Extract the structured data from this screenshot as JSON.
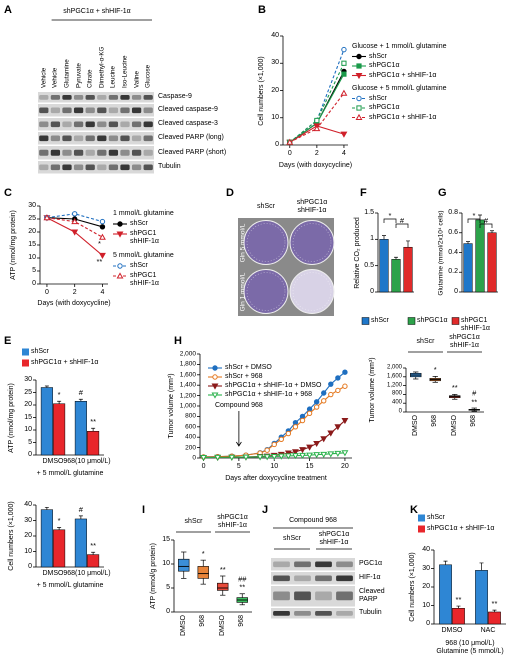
{
  "chart_data": [
    {
      "panel": "A",
      "type": "blot",
      "header": "shPGC1α + shHIF-1α",
      "lanes": [
        "Vehicle",
        "Vehicle",
        "Glutamine",
        "Pyruvate",
        "Citrate",
        "Dimethyl-α-KG",
        "Leucine",
        "Iso-Leucine",
        "Valine",
        "Glucose"
      ],
      "rows": [
        "Caspase-9",
        "Cleaved caspase-9",
        "Cleaved caspase-3",
        "Cleaved PARP (long)",
        "Cleaved PARP (short)",
        "Tubulin"
      ]
    },
    {
      "panel": "B",
      "type": "line",
      "ylabel": "Cell numbers (×1,000)",
      "xlabel": "Days (with doxycycline)",
      "x": [
        0,
        2,
        4
      ],
      "xlim": [
        -0.5,
        4.3
      ],
      "xticks": [
        0,
        2,
        4
      ],
      "ylim": [
        0,
        40
      ],
      "yticks": [
        0,
        10,
        20,
        30,
        40
      ],
      "legend_titles": [
        "Glucose + 1 mmol/L glutamine",
        "Glucose + 5 mmol/L glutamine"
      ],
      "series": [
        {
          "name": "shScr",
          "color": "#000000",
          "marker": "circle",
          "filled": true,
          "dash": false,
          "values": [
            1,
            8,
            27
          ]
        },
        {
          "name": "shPGC1α",
          "color": "#1a9a4a",
          "marker": "square",
          "filled": true,
          "dash": false,
          "values": [
            1,
            8,
            26
          ]
        },
        {
          "name": "shPGC1α + shHIF-1α",
          "color": "#d0202a",
          "marker": "triangle-down",
          "filled": true,
          "dash": false,
          "values": [
            1,
            7,
            4
          ]
        },
        {
          "name": "shScr",
          "color": "#1f6fc0",
          "marker": "circle",
          "filled": false,
          "dash": true,
          "values": [
            1,
            9,
            35
          ]
        },
        {
          "name": "shPGC1α",
          "color": "#1a9a4a",
          "marker": "square",
          "filled": false,
          "dash": true,
          "values": [
            1,
            9,
            30
          ]
        },
        {
          "name": "shPGC1α + shHIF-1α",
          "color": "#d0202a",
          "marker": "triangle-up",
          "filled": false,
          "dash": true,
          "values": [
            1,
            6,
            19
          ]
        }
      ]
    },
    {
      "panel": "C",
      "type": "line",
      "ylabel": "ATP (nmol/mg protein)",
      "xlabel": "Days (with doxycycline)",
      "x": [
        0,
        2,
        4
      ],
      "xlim": [
        -0.5,
        4.4
      ],
      "xticks": [
        0,
        2,
        4
      ],
      "ylim": [
        0,
        30
      ],
      "yticks": [
        0,
        5,
        10,
        15,
        20,
        25,
        30
      ],
      "legend_titles": [
        "1 mmol/L glutamine",
        "5 mmol/L glutamine"
      ],
      "series": [
        {
          "name": "shScr",
          "color": "#000000",
          "marker": "circle",
          "filled": true,
          "dash": false,
          "values": [
            25.5,
            25,
            22
          ]
        },
        {
          "name": "shPGC1\nshHIF-1α",
          "color": "#d0202a",
          "marker": "triangle-down",
          "filled": true,
          "dash": false,
          "values": [
            25.5,
            20,
            11
          ],
          "significance": [
            null,
            null,
            "**"
          ]
        },
        {
          "name": "shScr",
          "color": "#1f6fc0",
          "marker": "circle",
          "filled": false,
          "dash": true,
          "values": [
            25.5,
            27,
            24
          ]
        },
        {
          "name": "shPGC1\nshHIF-1α",
          "color": "#d0202a",
          "marker": "triangle-up",
          "filled": false,
          "dash": true,
          "values": [
            25.5,
            24,
            18
          ],
          "significance": [
            null,
            null,
            "*"
          ]
        }
      ]
    },
    {
      "panel": "D",
      "type": "image",
      "columns": [
        "shScr",
        "shPGC1α\nshHIF-1α"
      ],
      "rows": [
        "Gln 5 mmol/L",
        "Gln 1 mmol/L"
      ]
    },
    {
      "panel": "F",
      "type": "bar",
      "ylabel": "Relative CO₂ produced",
      "ylim": [
        0,
        1.5
      ],
      "yticks": [
        0,
        0.5,
        1,
        1.5
      ],
      "categories": [
        "shScr",
        "shPGC1α",
        "shPGC1\nshHIF-1α"
      ],
      "colors": [
        "#1f77c9",
        "#2ca24a",
        "#e02a2a"
      ],
      "values": [
        1.0,
        0.62,
        0.85
      ],
      "errors": [
        0.07,
        0.04,
        0.12
      ],
      "comparisons": [
        "*",
        "#"
      ]
    },
    {
      "panel": "G",
      "type": "bar",
      "ylabel": "Glutamine (mmol/2x10⁴ cells)",
      "ylim": [
        0,
        0.8
      ],
      "yticks": [
        0,
        0.2,
        0.4,
        0.6,
        0.8
      ],
      "colors": [
        "#1f77c9",
        "#2ca24a",
        "#e02a2a"
      ],
      "values": [
        0.49,
        0.73,
        0.6
      ],
      "errors": [
        0.02,
        0.05,
        0.02
      ],
      "comparisons": [
        "*",
        "#"
      ]
    },
    {
      "panel": "E",
      "type": "grouped_bar",
      "ylabel": "ATP (nmol/mg protein)",
      "ylim": [
        0,
        30
      ],
      "yticks": [
        0,
        5,
        10,
        15,
        20,
        25,
        30
      ],
      "categories": [
        "DMSO",
        "968(10 μmol/L)"
      ],
      "xlabel": "+ 5 mmol/L glutamine",
      "series": [
        {
          "name": "shScr",
          "color": "#2e86d4",
          "values": [
            27,
            21.5
          ],
          "errors": [
            0.6,
            0.8
          ],
          "significance": [
            null,
            "#"
          ]
        },
        {
          "name": "shPGC1α + shHIF-1α",
          "color": "#e8262b",
          "values": [
            20.5,
            9.5
          ],
          "errors": [
            1,
            1.2
          ],
          "significance": [
            "*",
            "**"
          ]
        }
      ]
    },
    {
      "type": "grouped_bar",
      "ylabel": "Cell numbers (×1,000)",
      "ylim": [
        0,
        40
      ],
      "yticks": [
        0,
        10,
        20,
        30,
        40
      ],
      "categories": [
        "DMSO",
        "968(10 μmol/L)"
      ],
      "xlabel": "+ 5 mmol/L glutamine",
      "series": [
        {
          "color": "#2e86d4",
          "values": [
            37,
            31
          ],
          "errors": [
            1.5,
            2
          ],
          "significance": [
            null,
            "#"
          ]
        },
        {
          "color": "#e8262b",
          "values": [
            24,
            8
          ],
          "errors": [
            1.5,
            1.5
          ],
          "significance": [
            "*",
            "**"
          ]
        }
      ]
    },
    {
      "panel": "H",
      "type": "line",
      "ylabel": "Tumor volume (mm³)",
      "xlabel": "Days after doxycycline treatment",
      "x": [
        0,
        2,
        4,
        6,
        8,
        9,
        10,
        11,
        12,
        13,
        14,
        15,
        16,
        17,
        18,
        19,
        20
      ],
      "xlim": [
        -0.5,
        21
      ],
      "xticks": [
        0,
        5,
        10,
        15,
        20
      ],
      "ylim": [
        0,
        2000
      ],
      "yticks": [
        0,
        200,
        400,
        600,
        800,
        {
          "value": 1000,
          "label": "1,000"
        },
        {
          "value": 1200,
          "label": "1,200"
        },
        {
          "value": 1400,
          "label": "1,400"
        },
        {
          "value": 1600,
          "label": "1,600"
        },
        {
          "value": 1800,
          "label": "1,800"
        },
        {
          "value": 2000,
          "label": "2,000"
        }
      ],
      "arrow_label": {
        "text": "Compound 968",
        "x": 5
      },
      "series": [
        {
          "name": "shScr + DMSO",
          "color": "#1f6fc0",
          "marker": "circle",
          "filled": true,
          "dash": false,
          "values": [
            20,
            25,
            35,
            55,
            100,
            160,
            280,
            400,
            520,
            680,
            800,
            940,
            1080,
            1250,
            1420,
            1540,
            1650
          ]
        },
        {
          "name": "shScr + 968",
          "color": "#e57a22",
          "marker": "circle",
          "filled": false,
          "dash": false,
          "values": [
            20,
            25,
            35,
            55,
            95,
            150,
            260,
            360,
            470,
            600,
            720,
            860,
            980,
            1100,
            1220,
            1300,
            1380
          ]
        },
        {
          "name": "shPGC1α + shHIF-1α + DMSO",
          "color": "#8b1a1a",
          "marker": "triangle-down",
          "filled": true,
          "dash": false,
          "values": [
            10,
            12,
            15,
            20,
            28,
            35,
            50,
            70,
            95,
            120,
            160,
            210,
            280,
            370,
            480,
            600,
            720
          ]
        },
        {
          "name": "shPGC1α + shHIF-1α + 968",
          "color": "#2bb24c",
          "marker": "triangle-down",
          "filled": false,
          "dash": false,
          "values": [
            10,
            12,
            15,
            18,
            22,
            25,
            30,
            35,
            40,
            45,
            50,
            55,
            65,
            70,
            80,
            90,
            100
          ]
        }
      ]
    },
    {
      "type": "box",
      "ylabel": "Tumor volume (mm³)",
      "ylim": [
        0,
        2000
      ],
      "yticks": [
        0,
        400,
        800,
        {
          "value": 1200,
          "label": "1,200"
        },
        {
          "value": 1600,
          "label": "1,600"
        },
        {
          "value": 2000,
          "label": "2,000"
        }
      ],
      "group_labels": [
        "shScr",
        "shPGC1α\nshHIF-1α"
      ],
      "categories": [
        "DMSO",
        "968",
        "DMSO",
        "968"
      ],
      "colors": [
        "#3b8fd9",
        "#e8843a",
        "#e84a3a",
        "#3cc060"
      ],
      "boxes": [
        [
          1500,
          1600,
          1680,
          1760,
          1820
        ],
        [
          1350,
          1420,
          1480,
          1530,
          1620
        ],
        [
          580,
          650,
          700,
          740,
          800
        ],
        [
          40,
          80,
          100,
          120,
          180
        ]
      ],
      "significance": [
        null,
        "*",
        "**",
        "#\n**"
      ]
    },
    {
      "panel": "I",
      "type": "box",
      "ylabel": "ATP (mmol/g protein)",
      "ylim": [
        0,
        15
      ],
      "yticks": [
        0,
        5,
        10,
        15
      ],
      "group_labels": [
        "shScr",
        "shPGC1α\nshHIF-1α"
      ],
      "categories": [
        "DMSO",
        "968",
        "DMSO",
        "968"
      ],
      "colors": [
        "#3b8fd9",
        "#e8843a",
        "#e84a3a",
        "#3cc060"
      ],
      "boxes": [
        [
          7,
          8.5,
          9.5,
          11,
          12.5
        ],
        [
          5.8,
          7,
          8,
          9.5,
          10.8
        ],
        [
          3.5,
          4.5,
          5,
          6,
          7.5
        ],
        [
          1.5,
          2,
          2.5,
          3,
          3.8
        ]
      ],
      "significance": [
        null,
        "*",
        "**",
        "##\n**"
      ]
    },
    {
      "panel": "J",
      "type": "blot",
      "header": "Compound 968",
      "columns": [
        "shScr",
        "shPGC1α\nshHIF-1α"
      ],
      "rows": [
        "PGC1α",
        "HIF-1α",
        "Cleaved\nPARP",
        "Tubulin"
      ]
    },
    {
      "panel": "K",
      "type": "grouped_bar",
      "ylabel": "Cell numbers (×1,000)",
      "ylim": [
        0,
        40
      ],
      "yticks": [
        0,
        10,
        20,
        30,
        40
      ],
      "categories": [
        "DMSO",
        "NAC"
      ],
      "xlabel": "968 (10 μmol/L)\nGlutamine (5 mmol/L)",
      "series": [
        {
          "name": "shScr",
          "color": "#2e86d4",
          "values": [
            32,
            29
          ],
          "errors": [
            2,
            4
          ]
        },
        {
          "name": "shPGC1α + shHIF-1α",
          "color": "#e8262b",
          "values": [
            8.5,
            6.5
          ],
          "errors": [
            1.2,
            1
          ],
          "significance": [
            "**",
            "**"
          ]
        }
      ]
    }
  ]
}
